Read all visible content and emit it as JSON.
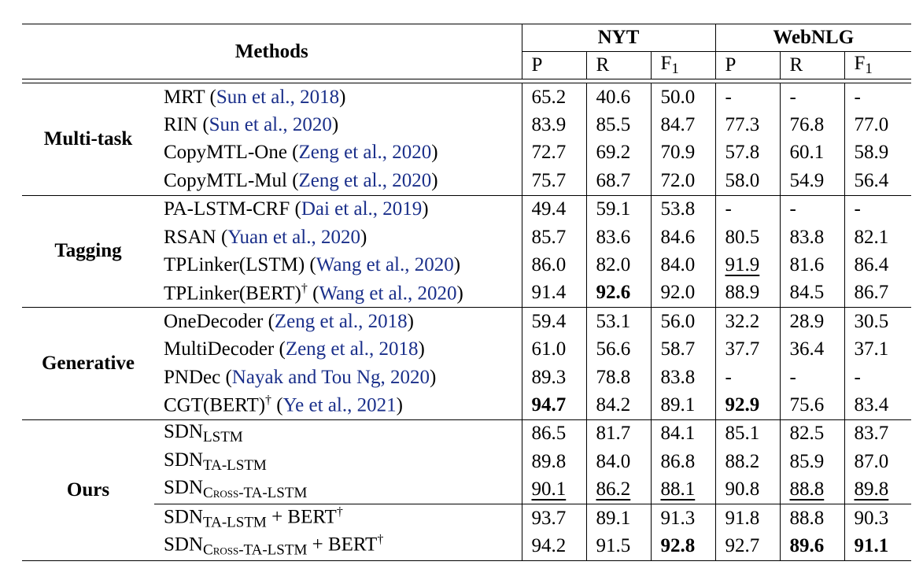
{
  "header": {
    "methods": "Methods",
    "nyt": "NYT",
    "webnlg": "WebNLG",
    "p": "P",
    "r": "R",
    "f": "F",
    "f_sub": "1"
  },
  "groups": [
    {
      "name": "Multi-task",
      "rows": [
        {
          "method": "MRT",
          "cite_author": "Sun et al.",
          "cite_year": "2018",
          "vals": [
            "65.2",
            "40.6",
            "50.0",
            "-",
            "-",
            "-"
          ]
        },
        {
          "method": "RIN",
          "cite_author": "Sun et al.",
          "cite_year": "2020",
          "vals": [
            "83.9",
            "85.5",
            "84.7",
            "77.3",
            "76.8",
            "77.0"
          ]
        },
        {
          "method": "CopyMTL-One",
          "cite_author": "Zeng et al.",
          "cite_year": "2020",
          "vals": [
            "72.7",
            "69.2",
            "70.9",
            "57.8",
            "60.1",
            "58.9"
          ]
        },
        {
          "method": "CopyMTL-Mul",
          "cite_author": "Zeng et al.",
          "cite_year": "2020",
          "vals": [
            "75.7",
            "68.7",
            "72.0",
            "58.0",
            "54.9",
            "56.4"
          ]
        }
      ]
    },
    {
      "name": "Tagging",
      "rows": [
        {
          "method": "PA-LSTM-CRF",
          "cite_author": "Dai et al.",
          "cite_year": "2019",
          "vals": [
            "49.4",
            "59.1",
            "53.8",
            "-",
            "-",
            "-"
          ]
        },
        {
          "method": "RSAN",
          "cite_author": "Yuan et al.",
          "cite_year": "2020",
          "vals": [
            "85.7",
            "83.6",
            "84.6",
            "80.5",
            "83.8",
            "82.1"
          ]
        },
        {
          "method": "TPLinker(LSTM)",
          "cite_author": "Wang et al.",
          "cite_year": "2020",
          "vals": [
            "86.0",
            "82.0",
            "84.0",
            "91.9",
            "81.6",
            "86.4"
          ]
        },
        {
          "method": "TPLinker(BERT)",
          "dagger": "†",
          "cite_author": "Wang et al.",
          "cite_year": "2020",
          "vals": [
            "91.4",
            "92.6",
            "92.0",
            "88.9",
            "84.5",
            "86.7"
          ]
        }
      ]
    },
    {
      "name": "Generative",
      "rows": [
        {
          "method": "OneDecoder",
          "cite_author": "Zeng et al.",
          "cite_year": "2018",
          "vals": [
            "59.4",
            "53.1",
            "56.0",
            "32.2",
            "28.9",
            "30.5"
          ]
        },
        {
          "method": "MultiDecoder",
          "cite_author": "Zeng et al.",
          "cite_year": "2018",
          "vals": [
            "61.0",
            "56.6",
            "58.7",
            "37.7",
            "36.4",
            "37.1"
          ]
        },
        {
          "method": "PNDec",
          "cite_author": "Nayak and Tou Ng",
          "cite_year": "2020",
          "vals": [
            "89.3",
            "78.8",
            "83.8",
            "-",
            "-",
            "-"
          ]
        },
        {
          "method": "CGT(BERT)",
          "dagger": "†",
          "cite_author": "Ye et al.",
          "cite_year": "2021",
          "vals": [
            "94.7",
            "84.2",
            "89.1",
            "92.9",
            "75.6",
            "83.4"
          ]
        }
      ]
    },
    {
      "name": "Ours",
      "rows": [
        {
          "method": "SDN",
          "sub": "LSTM",
          "vals": [
            "86.5",
            "81.7",
            "84.1",
            "85.1",
            "82.5",
            "83.7"
          ]
        },
        {
          "method": "SDN",
          "sub": "TA-LSTM",
          "vals": [
            "89.8",
            "84.0",
            "86.8",
            "88.2",
            "85.9",
            "87.0"
          ]
        },
        {
          "method": "SDN",
          "sub": "Cross-TA-LSTM",
          "vals": [
            "90.1",
            "86.2",
            "88.1",
            "90.8",
            "88.8",
            "89.8"
          ]
        },
        {
          "method": "SDN",
          "sub": "TA-LSTM",
          "suffix": " + BERT",
          "dagger": "†",
          "vals": [
            "93.7",
            "89.1",
            "91.3",
            "91.8",
            "88.8",
            "90.3"
          ]
        },
        {
          "method": "SDN",
          "sub": "Cross-TA-LSTM",
          "suffix": " + BERT",
          "dagger": "†",
          "vals": [
            "94.2",
            "91.5",
            "92.8",
            "92.7",
            "89.6",
            "91.1"
          ]
        }
      ]
    }
  ]
}
